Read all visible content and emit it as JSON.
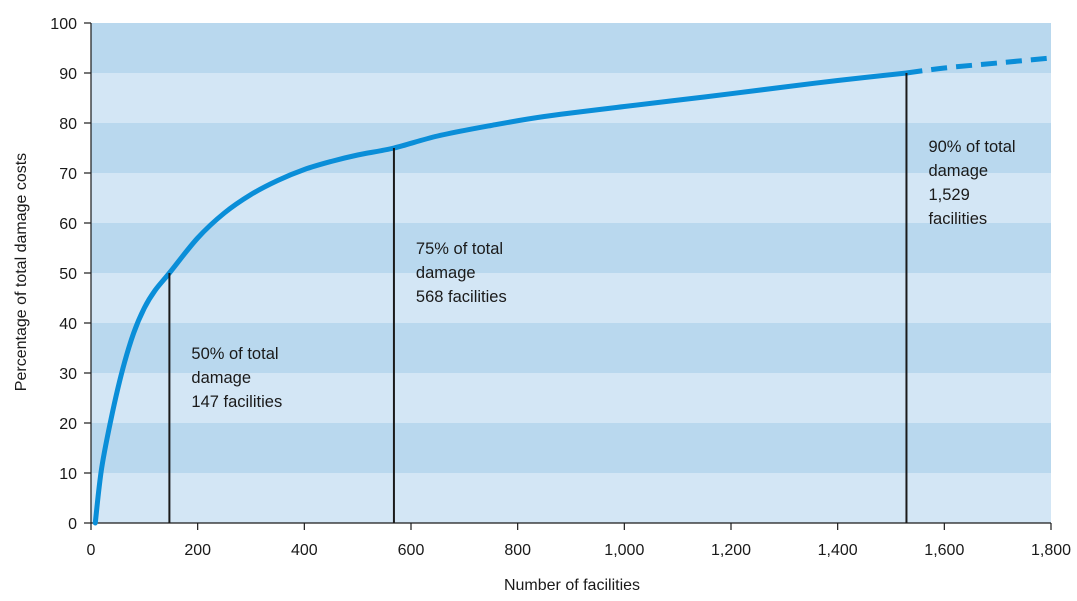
{
  "chart_data": {
    "type": "line",
    "title": "",
    "xlabel": "Number of facilities",
    "ylabel": "Percentage of total damage costs",
    "xlim": [
      0,
      1800
    ],
    "ylim": [
      0,
      100
    ],
    "x_ticks": [
      0,
      200,
      400,
      600,
      800,
      1000,
      1200,
      1400,
      1600,
      1800
    ],
    "x_tick_labels": [
      "0",
      "200",
      "400",
      "600",
      "800",
      "1,000",
      "1,200",
      "1,400",
      "1,600",
      "1,800"
    ],
    "y_ticks": [
      0,
      10,
      20,
      30,
      40,
      50,
      60,
      70,
      80,
      90,
      100
    ],
    "y_tick_labels": [
      "0",
      "10",
      "20",
      "30",
      "40",
      "50",
      "60",
      "70",
      "80",
      "90",
      "100"
    ],
    "grid": "alternating horizontal bands",
    "series": [
      {
        "style": "solid",
        "color": "#0a8ed8",
        "x": [
          8,
          20,
          40,
          60,
          80,
          100,
          120,
          147,
          200,
          250,
          300,
          350,
          400,
          450,
          500,
          568,
          650,
          750,
          850,
          1000,
          1150,
          1300,
          1400,
          1529
        ],
        "y": [
          0,
          11,
          22,
          31,
          38,
          43,
          46.5,
          50,
          57,
          62,
          65.7,
          68.5,
          70.7,
          72.3,
          73.6,
          75,
          77.4,
          79.5,
          81.3,
          83.3,
          85.2,
          87.2,
          88.5,
          90
        ]
      },
      {
        "style": "dashed",
        "color": "#0a8ed8",
        "x": [
          1529,
          1600,
          1700,
          1800
        ],
        "y": [
          90,
          91.0,
          92.0,
          93.0
        ]
      }
    ],
    "annotations": [
      {
        "x": 147,
        "y": 50,
        "lines": [
          "50% of total",
          "damage",
          "147 facilities"
        ]
      },
      {
        "x": 568,
        "y": 75,
        "lines": [
          "75% of total",
          "damage",
          "568 facilities"
        ]
      },
      {
        "x": 1529,
        "y": 90,
        "lines": [
          "90% of total",
          "damage",
          "1,529",
          "facilities"
        ]
      }
    ],
    "colors": {
      "band_dark": "#b9d8ee",
      "band_light": "#d3e6f5",
      "line": "#0a8ed8",
      "marker_line": "#1a1a1a",
      "axis": "#1a1a1a"
    }
  }
}
